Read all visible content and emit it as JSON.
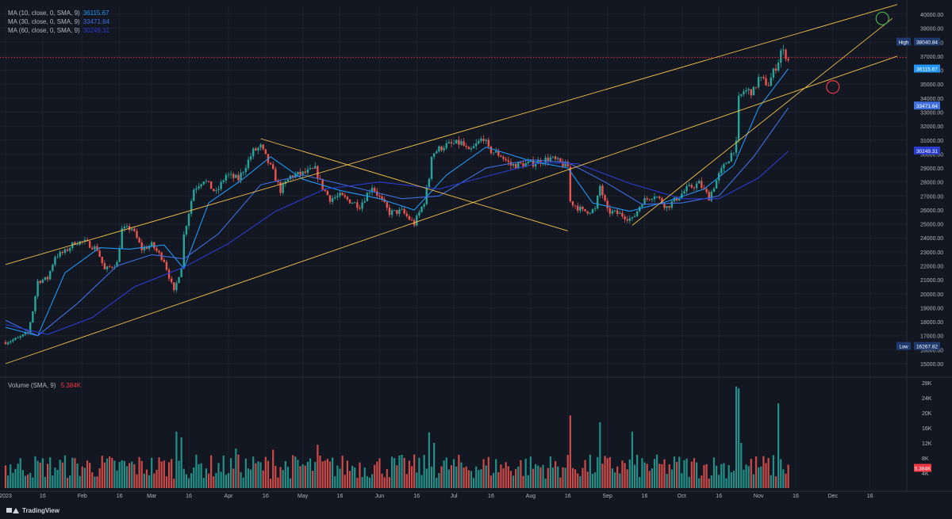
{
  "legend": {
    "ma": [
      {
        "label": "MA (10, close, 0, SMA, 9)",
        "value": "36115.67",
        "color": "#2196f3"
      },
      {
        "label": "MA (30, close, 0, SMA, 9)",
        "value": "33471.64",
        "color": "#3f6fe0"
      },
      {
        "label": "MA (60, close, 0, SMA, 9)",
        "value": "30249.31",
        "color": "#2a3bd0"
      }
    ],
    "volume_label": "Volume (SMA, 9)",
    "volume_value": "5.384K",
    "volume_value_color": "#f23645"
  },
  "brand": "TradingView",
  "colors": {
    "background": "#131722",
    "up": "#26a69a",
    "down": "#ef5350",
    "trendline": "#f0c14b",
    "grid": "#1e222d",
    "axis_text": "#b2b5be",
    "vol_up": "#26a69a",
    "vol_down": "#ef5350"
  },
  "chart_data": {
    "type": "candlestick",
    "price_axis": {
      "range": [
        15000,
        40000
      ],
      "ticks": [
        "40000.00",
        "39000.00",
        "38000.00",
        "37000.00",
        "36000.00",
        "35000.00",
        "34000.00",
        "33000.00",
        "32000.00",
        "31000.00",
        "30000.00",
        "29000.00",
        "28000.00",
        "27000.00",
        "26000.00",
        "25000.00",
        "24000.00",
        "23000.00",
        "22000.00",
        "21000.00",
        "20000.00",
        "19000.00",
        "18000.00",
        "17000.00",
        "16000.00",
        "15000.00"
      ]
    },
    "time_axis": {
      "range": [
        "2023-01-01",
        "2023-12-27"
      ],
      "ticks": [
        {
          "date": "2023-01-01",
          "label": "2023"
        },
        {
          "date": "2023-01-16",
          "label": "16"
        },
        {
          "date": "2023-02-01",
          "label": "Feb"
        },
        {
          "date": "2023-02-16",
          "label": "16"
        },
        {
          "date": "2023-03-01",
          "label": "Mar"
        },
        {
          "date": "2023-03-16",
          "label": "16"
        },
        {
          "date": "2023-04-01",
          "label": "Apr"
        },
        {
          "date": "2023-04-16",
          "label": "16"
        },
        {
          "date": "2023-05-01",
          "label": "May"
        },
        {
          "date": "2023-05-16",
          "label": "16"
        },
        {
          "date": "2023-06-01",
          "label": "Jun"
        },
        {
          "date": "2023-06-16",
          "label": "16"
        },
        {
          "date": "2023-07-01",
          "label": "Jul"
        },
        {
          "date": "2023-07-16",
          "label": "16"
        },
        {
          "date": "2023-08-01",
          "label": "Aug"
        },
        {
          "date": "2023-08-16",
          "label": "16"
        },
        {
          "date": "2023-09-01",
          "label": "Sep"
        },
        {
          "date": "2023-09-16",
          "label": "16"
        },
        {
          "date": "2023-10-01",
          "label": "Oct"
        },
        {
          "date": "2023-10-16",
          "label": "16"
        },
        {
          "date": "2023-11-01",
          "label": "Nov"
        },
        {
          "date": "2023-11-16",
          "label": "16"
        },
        {
          "date": "2023-12-01",
          "label": "Dec"
        },
        {
          "date": "2023-12-16",
          "label": "16"
        }
      ]
    },
    "price_anchors": [
      [
        "2023-01-01",
        16550
      ],
      [
        "2023-01-06",
        16800
      ],
      [
        "2023-01-10",
        17200
      ],
      [
        "2023-01-12",
        18800
      ],
      [
        "2023-01-14",
        20900
      ],
      [
        "2023-01-18",
        21100
      ],
      [
        "2023-01-21",
        22700
      ],
      [
        "2023-01-25",
        23000
      ],
      [
        "2023-01-29",
        23700
      ],
      [
        "2023-02-02",
        23700
      ],
      [
        "2023-02-07",
        23200
      ],
      [
        "2023-02-10",
        21700
      ],
      [
        "2023-02-15",
        22200
      ],
      [
        "2023-02-17",
        24600
      ],
      [
        "2023-02-21",
        24700
      ],
      [
        "2023-02-25",
        23200
      ],
      [
        "2023-03-01",
        23500
      ],
      [
        "2023-03-06",
        22400
      ],
      [
        "2023-03-10",
        20100
      ],
      [
        "2023-03-13",
        22000
      ],
      [
        "2023-03-14",
        24200
      ],
      [
        "2023-03-18",
        27500
      ],
      [
        "2023-03-22",
        28200
      ],
      [
        "2023-03-27",
        27200
      ],
      [
        "2023-03-31",
        28500
      ],
      [
        "2023-04-05",
        28200
      ],
      [
        "2023-04-11",
        30200
      ],
      [
        "2023-04-14",
        30500
      ],
      [
        "2023-04-19",
        28700
      ],
      [
        "2023-04-22",
        27400
      ],
      [
        "2023-04-26",
        28400
      ],
      [
        "2023-05-01",
        28600
      ],
      [
        "2023-05-06",
        28900
      ],
      [
        "2023-05-09",
        27600
      ],
      [
        "2023-05-12",
        26800
      ],
      [
        "2023-05-16",
        27000
      ],
      [
        "2023-05-24",
        26300
      ],
      [
        "2023-05-29",
        27700
      ],
      [
        "2023-06-05",
        25800
      ],
      [
        "2023-06-10",
        25900
      ],
      [
        "2023-06-15",
        25000
      ],
      [
        "2023-06-19",
        26600
      ],
      [
        "2023-06-21",
        28300
      ],
      [
        "2023-06-22",
        30000
      ],
      [
        "2023-06-27",
        30600
      ],
      [
        "2023-07-04",
        30800
      ],
      [
        "2023-07-07",
        30100
      ],
      [
        "2023-07-13",
        31200
      ],
      [
        "2023-07-15",
        30300
      ],
      [
        "2023-07-20",
        29900
      ],
      [
        "2023-07-24",
        29200
      ],
      [
        "2023-08-01",
        29300
      ],
      [
        "2023-08-09",
        29700
      ],
      [
        "2023-08-16",
        29100
      ],
      [
        "2023-08-17",
        26600
      ],
      [
        "2023-08-22",
        25900
      ],
      [
        "2023-08-27",
        26000
      ],
      [
        "2023-08-29",
        27700
      ],
      [
        "2023-09-01",
        25900
      ],
      [
        "2023-09-06",
        25700
      ],
      [
        "2023-09-11",
        25300
      ],
      [
        "2023-09-15",
        26600
      ],
      [
        "2023-09-20",
        27100
      ],
      [
        "2023-09-25",
        26200
      ],
      [
        "2023-09-30",
        27000
      ],
      [
        "2023-10-03",
        27500
      ],
      [
        "2023-10-08",
        27900
      ],
      [
        "2023-10-12",
        26900
      ],
      [
        "2023-10-16",
        28500
      ],
      [
        "2023-10-20",
        29700
      ],
      [
        "2023-10-23",
        30700
      ],
      [
        "2023-10-24",
        33900
      ],
      [
        "2023-10-26",
        34500
      ],
      [
        "2023-10-30",
        34500
      ],
      [
        "2023-11-01",
        35400
      ],
      [
        "2023-11-05",
        35000
      ],
      [
        "2023-11-09",
        36700
      ],
      [
        "2023-11-10",
        37400
      ],
      [
        "2023-11-12",
        37100
      ],
      [
        "2023-11-13",
        36700
      ]
    ],
    "ma_series": [
      {
        "name": "MA 10",
        "value": 36115.67,
        "points": [
          [
            "2023-01-01",
            17600
          ],
          [
            "2023-01-14",
            17000
          ],
          [
            "2023-01-25",
            21500
          ],
          [
            "2023-02-08",
            23300
          ],
          [
            "2023-02-20",
            23200
          ],
          [
            "2023-03-06",
            23500
          ],
          [
            "2023-03-14",
            21800
          ],
          [
            "2023-03-24",
            26500
          ],
          [
            "2023-04-06",
            28100
          ],
          [
            "2023-04-18",
            29800
          ],
          [
            "2023-05-01",
            28200
          ],
          [
            "2023-05-16",
            27400
          ],
          [
            "2023-06-01",
            26800
          ],
          [
            "2023-06-15",
            26000
          ],
          [
            "2023-06-28",
            28500
          ],
          [
            "2023-07-14",
            30500
          ],
          [
            "2023-08-01",
            29500
          ],
          [
            "2023-08-16",
            29000
          ],
          [
            "2023-08-26",
            26500
          ],
          [
            "2023-09-10",
            25900
          ],
          [
            "2023-09-25",
            26600
          ],
          [
            "2023-10-10",
            27500
          ],
          [
            "2023-10-22",
            29200
          ],
          [
            "2023-11-01",
            33300
          ],
          [
            "2023-11-13",
            36100
          ]
        ]
      },
      {
        "name": "MA 30",
        "value": 33471.64,
        "points": [
          [
            "2023-01-01",
            18100
          ],
          [
            "2023-01-14",
            17000
          ],
          [
            "2023-01-30",
            19300
          ],
          [
            "2023-02-15",
            22000
          ],
          [
            "2023-03-01",
            22800
          ],
          [
            "2023-03-14",
            22500
          ],
          [
            "2023-03-28",
            24300
          ],
          [
            "2023-04-14",
            27800
          ],
          [
            "2023-05-01",
            28500
          ],
          [
            "2023-05-20",
            27700
          ],
          [
            "2023-06-10",
            26800
          ],
          [
            "2023-06-25",
            27000
          ],
          [
            "2023-07-14",
            29000
          ],
          [
            "2023-08-01",
            29600
          ],
          [
            "2023-08-16",
            29400
          ],
          [
            "2023-08-31",
            28000
          ],
          [
            "2023-09-15",
            26400
          ],
          [
            "2023-10-01",
            26500
          ],
          [
            "2023-10-16",
            27000
          ],
          [
            "2023-10-30",
            29800
          ],
          [
            "2023-11-13",
            33300
          ]
        ]
      },
      {
        "name": "MA 60",
        "value": 30249.31,
        "points": [
          [
            "2023-01-01",
            17800
          ],
          [
            "2023-01-18",
            17100
          ],
          [
            "2023-02-05",
            18300
          ],
          [
            "2023-02-22",
            20500
          ],
          [
            "2023-03-14",
            21900
          ],
          [
            "2023-04-01",
            23600
          ],
          [
            "2023-04-20",
            25900
          ],
          [
            "2023-05-10",
            27500
          ],
          [
            "2023-06-01",
            28000
          ],
          [
            "2023-06-25",
            27500
          ],
          [
            "2023-07-16",
            28500
          ],
          [
            "2023-08-05",
            29400
          ],
          [
            "2023-08-20",
            29300
          ],
          [
            "2023-09-10",
            27900
          ],
          [
            "2023-10-01",
            26800
          ],
          [
            "2023-10-16",
            26800
          ],
          [
            "2023-11-01",
            28300
          ],
          [
            "2023-11-13",
            30200
          ]
        ]
      }
    ],
    "volume_axis": {
      "range": [
        0,
        28000
      ],
      "ticks": [
        "28K",
        "24K",
        "20K",
        "16K",
        "12K",
        "8K",
        "4K"
      ]
    },
    "volume_sma": 5384,
    "volume_spikes": [
      {
        "date": "2023-03-11",
        "value": 15000
      },
      {
        "date": "2023-03-13",
        "value": 13500
      },
      {
        "date": "2023-04-04",
        "value": 10500
      },
      {
        "date": "2023-04-19",
        "value": 10200
      },
      {
        "date": "2023-05-07",
        "value": 11500
      },
      {
        "date": "2023-06-21",
        "value": 14800
      },
      {
        "date": "2023-06-23",
        "value": 12000
      },
      {
        "date": "2023-08-17",
        "value": 19300
      },
      {
        "date": "2023-08-29",
        "value": 17500
      },
      {
        "date": "2023-09-11",
        "value": 15000
      },
      {
        "date": "2023-10-23",
        "value": 27000
      },
      {
        "date": "2023-10-24",
        "value": 26500
      },
      {
        "date": "2023-10-25",
        "value": 12000
      },
      {
        "date": "2023-11-09",
        "value": 22500
      }
    ],
    "trendlines": [
      {
        "from": [
          "2023-01-01",
          22100
        ],
        "to": [
          "2023-12-27",
          40700
        ]
      },
      {
        "from": [
          "2023-01-01",
          15000
        ],
        "to": [
          "2023-12-27",
          37000
        ]
      },
      {
        "from": [
          "2023-04-14",
          31100
        ],
        "to": [
          "2023-08-16",
          24500
        ]
      },
      {
        "from": [
          "2023-09-11",
          24900
        ],
        "to": [
          "2023-12-25",
          39700
        ]
      }
    ],
    "markers": [
      {
        "date": "2023-12-21",
        "price": 39700,
        "color": "#4caf50"
      },
      {
        "date": "2023-12-01",
        "price": 34800,
        "color": "#f23645"
      }
    ],
    "reference_line": {
      "price": 36900,
      "color": "#f23645"
    },
    "price_labels": [
      {
        "label": "High",
        "value": "38040.84",
        "price": 38040.84,
        "bg": "#1e3a6e"
      },
      {
        "label": "",
        "value": "36115.67",
        "price": 36115.67,
        "bg": "#2196f3"
      },
      {
        "label": "",
        "value": "33471.64",
        "price": 33471.64,
        "bg": "#3f6fe0"
      },
      {
        "label": "",
        "value": "30249.31",
        "price": 30249.31,
        "bg": "#2a3bd0"
      },
      {
        "label": "Low",
        "value": "16267.82",
        "price": 16267.82,
        "bg": "#1e3a6e"
      }
    ]
  }
}
